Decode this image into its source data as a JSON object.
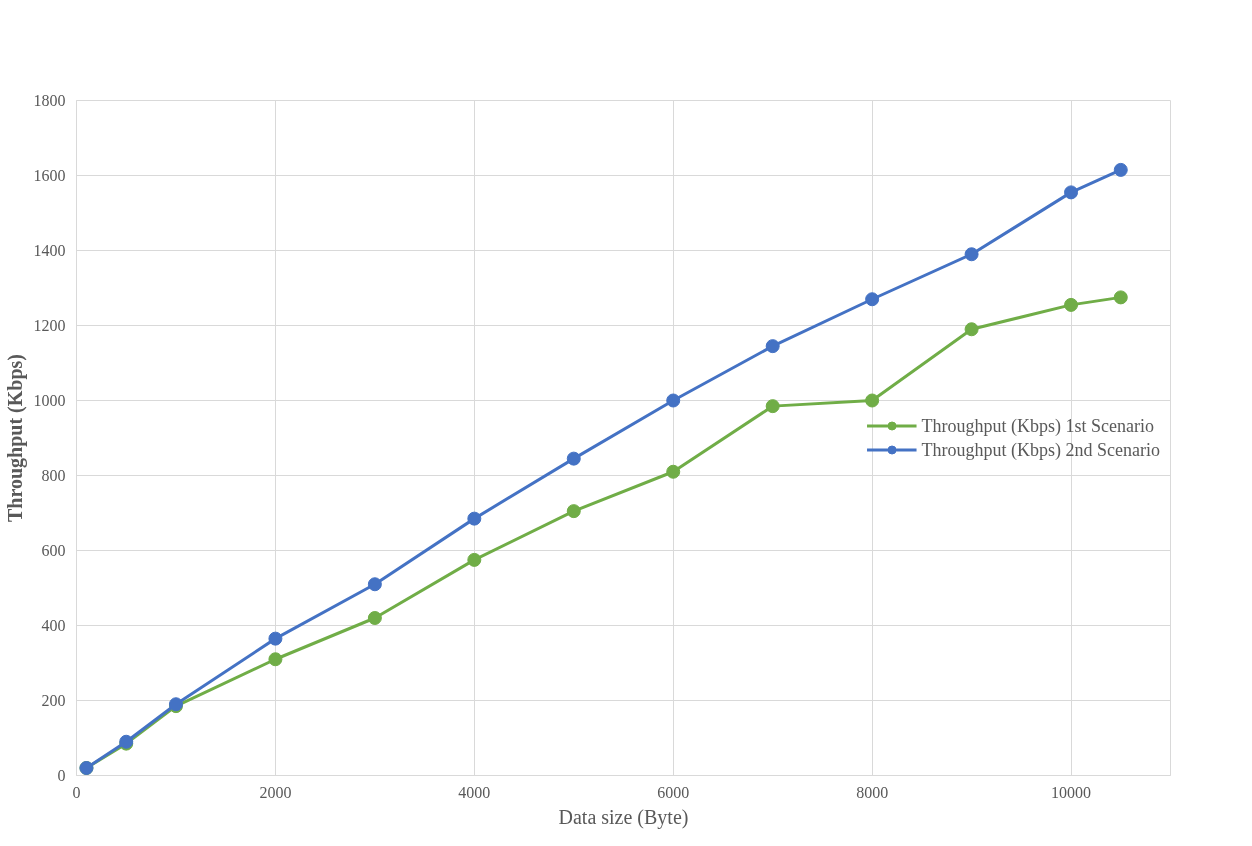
{
  "chart_data": {
    "type": "line",
    "xlabel": "Data size (Byte)",
    "ylabel": "Throughput (Kbps)",
    "x": [
      100,
      500,
      1000,
      2000,
      3000,
      4000,
      5000,
      6000,
      7000,
      8000,
      9000,
      10000,
      10500
    ],
    "series": [
      {
        "name": "Throughput (Kbps) 1st Scenario",
        "color": "#70ad47",
        "values": [
          20,
          85,
          185,
          310,
          420,
          575,
          705,
          810,
          985,
          1000,
          1190,
          1255,
          1275
        ]
      },
      {
        "name": "Throughput (Kbps) 2nd Scenario",
        "color": "#4472c4",
        "values": [
          20,
          90,
          190,
          365,
          510,
          685,
          845,
          1000,
          1145,
          1270,
          1390,
          1555,
          1615
        ]
      }
    ],
    "xlim": [
      0,
      11000
    ],
    "ylim": [
      0,
      1800
    ],
    "xticks": [
      0,
      2000,
      4000,
      6000,
      8000,
      10000
    ],
    "yticks": [
      0,
      200,
      400,
      600,
      800,
      1000,
      1200,
      1400,
      1600,
      1800
    ],
    "grid": true,
    "legend": "right",
    "marker": "circle",
    "line_style": "solid"
  }
}
